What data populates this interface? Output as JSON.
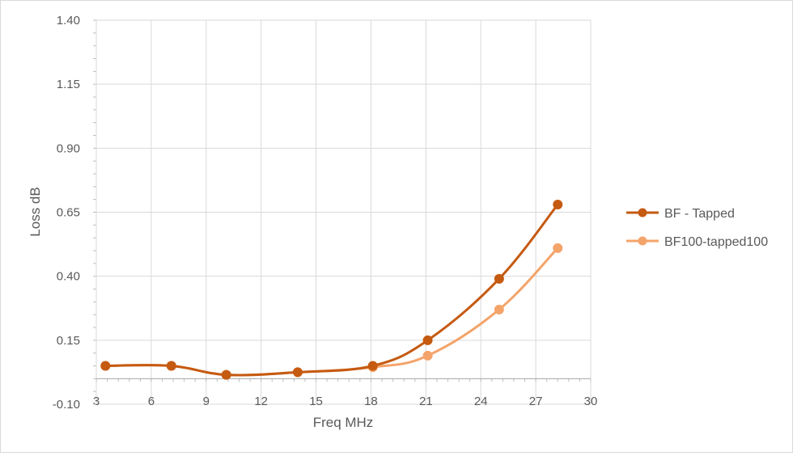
{
  "chart_data": {
    "type": "line",
    "xlabel": "Freq MHz",
    "ylabel": "Loss dB",
    "xlim": [
      3,
      30
    ],
    "ylim": [
      -0.1,
      1.4
    ],
    "xticks": [
      "3",
      "6",
      "9",
      "12",
      "15",
      "18",
      "21",
      "24",
      "27",
      "30"
    ],
    "yticks": [
      "1.40",
      "1.15",
      "0.90",
      "0.65",
      "0.40",
      "0.15",
      "-0.10"
    ],
    "grid": true,
    "legend_position": "right",
    "series": [
      {
        "name": "BF - Tapped",
        "color": "#c55a11",
        "x": [
          3.5,
          7.1,
          10.1,
          14.0,
          18.1,
          21.1,
          25.0,
          28.2
        ],
        "y": [
          0.05,
          0.05,
          0.015,
          0.025,
          0.05,
          0.15,
          0.39,
          0.68
        ]
      },
      {
        "name": "BF100-tapped100",
        "color": "#f4a46a",
        "x": [
          3.5,
          7.1,
          10.1,
          14.0,
          18.1,
          21.1,
          25.0,
          28.2
        ],
        "y": [
          0.05,
          0.05,
          0.015,
          0.025,
          0.045,
          0.09,
          0.27,
          0.51
        ]
      }
    ]
  }
}
